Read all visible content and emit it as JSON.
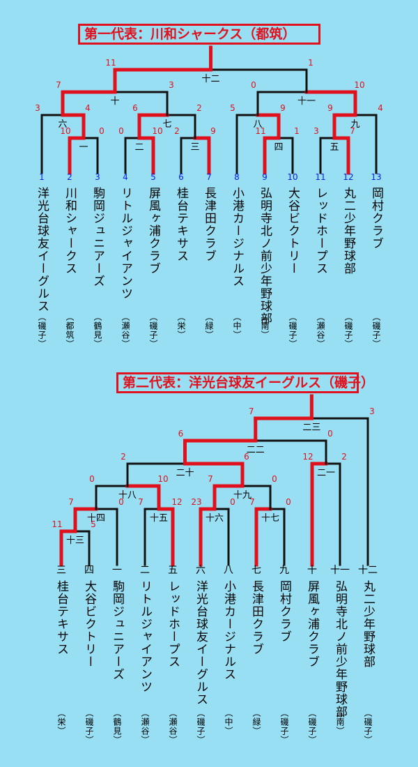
{
  "bracket1": {
    "title": "第一代表：川和シャークス（都筑）",
    "teams": [
      {
        "seed": "1",
        "name": "洋光台球友イーグルス",
        "ward": "（磯子）"
      },
      {
        "seed": "2",
        "name": "川和シャークス",
        "ward": "（都筑）"
      },
      {
        "seed": "3",
        "name": "駒岡ジュニアーズ",
        "ward": "（鶴見）"
      },
      {
        "seed": "4",
        "name": "リトルジャイアンツ",
        "ward": "（瀬谷）"
      },
      {
        "seed": "5",
        "name": "屏風ヶ浦クラブ",
        "ward": "（磯子）"
      },
      {
        "seed": "6",
        "name": "桂台テキサス",
        "ward": "（栄）"
      },
      {
        "seed": "7",
        "name": "長津田クラブ",
        "ward": "（緑）"
      },
      {
        "seed": "8",
        "name": "小港カージナルス",
        "ward": "（中）"
      },
      {
        "seed": "9",
        "name": "弘明寺北ノ前少年野球部",
        "ward": "（南）"
      },
      {
        "seed": "10",
        "name": "大谷ビクトリー",
        "ward": "（磯子）"
      },
      {
        "seed": "11",
        "name": "レッドホープス",
        "ward": "（瀬谷）"
      },
      {
        "seed": "12",
        "name": "丸二少年野球部",
        "ward": "（磯子）"
      },
      {
        "seed": "13",
        "name": "岡村クラブ",
        "ward": "（磯子）"
      }
    ],
    "games": [
      {
        "label": "一",
        "score_left": "10",
        "score_right": "0"
      },
      {
        "label": "二",
        "score_left": "0",
        "score_right": "10"
      },
      {
        "label": "三",
        "score_left": "2",
        "score_right": "9"
      },
      {
        "label": "四",
        "score_left": "11",
        "score_right": "1"
      },
      {
        "label": "五",
        "score_left": "3",
        "score_right": "7"
      },
      {
        "label": "六",
        "score_left": "3",
        "score_right": "4"
      },
      {
        "label": "七",
        "score_left": "6",
        "score_right": "2"
      },
      {
        "label": "八",
        "score_left": "5",
        "score_right": "9"
      },
      {
        "label": "九",
        "score_left": "9",
        "score_right": "4"
      },
      {
        "label": "十",
        "score_left": "7",
        "score_right": "3"
      },
      {
        "label": "十一",
        "score_left": "0",
        "score_right": "10"
      },
      {
        "label": "十二",
        "score_left": "11",
        "score_right": "1"
      }
    ]
  },
  "bracket2": {
    "title": "第二代表：洋光台球友イーグルス（磯子）",
    "teams": [
      {
        "seed": "三",
        "name": "桂台テキサス",
        "ward": "（栄）"
      },
      {
        "seed": "四",
        "name": "大谷ビクトリー",
        "ward": "（磯子）"
      },
      {
        "seed": "一",
        "name": "駒岡ジュニアーズ",
        "ward": "（鶴見）"
      },
      {
        "seed": "二",
        "name": "リトルジャイアンツ",
        "ward": "（瀬谷）"
      },
      {
        "seed": "五",
        "name": "レッドホープス",
        "ward": "（瀬谷）"
      },
      {
        "seed": "六",
        "name": "洋光台球友イーグルス",
        "ward": "（磯子）"
      },
      {
        "seed": "八",
        "name": "小港カージナルス",
        "ward": "（中）"
      },
      {
        "seed": "七",
        "name": "長津田クラブ",
        "ward": "（緑）"
      },
      {
        "seed": "九",
        "name": "岡村クラブ",
        "ward": "（磯子）"
      },
      {
        "seed": "十",
        "name": "屏風ヶ浦クラブ",
        "ward": "（磯子）"
      },
      {
        "seed": "十一",
        "name": "弘明寺北ノ前少年野球部",
        "ward": "（南）"
      },
      {
        "seed": "十二",
        "name": "丸二少年野球部",
        "ward": "（磯子）"
      }
    ],
    "games": [
      {
        "label": "十三",
        "score_left": "11",
        "score_right": "5"
      },
      {
        "label": "十四",
        "score_left": "7",
        "score_right": "0"
      },
      {
        "label": "十五",
        "score_left": "7",
        "score_right": "12"
      },
      {
        "label": "十六",
        "score_left": "23",
        "score_right": "0"
      },
      {
        "label": "十七",
        "score_left": "7",
        "score_right": "0"
      },
      {
        "label": "十八",
        "score_left": "0",
        "score_right": "10"
      },
      {
        "label": "十九",
        "score_left": "7",
        "score_right": "0"
      },
      {
        "label": "二十",
        "score_left": "2",
        "score_right": "6"
      },
      {
        "label": "二一",
        "score_left": "12",
        "score_right": "2"
      },
      {
        "label": "二二",
        "score_left": "6",
        "score_right": "0"
      },
      {
        "label": "二三",
        "score_left": "7",
        "score_right": "3"
      }
    ]
  },
  "colors": {
    "background": "#99dff3",
    "win_line": "#e0101c",
    "line": "#111111",
    "score": "#e0101c",
    "seed_number": "#0a1ee8"
  }
}
